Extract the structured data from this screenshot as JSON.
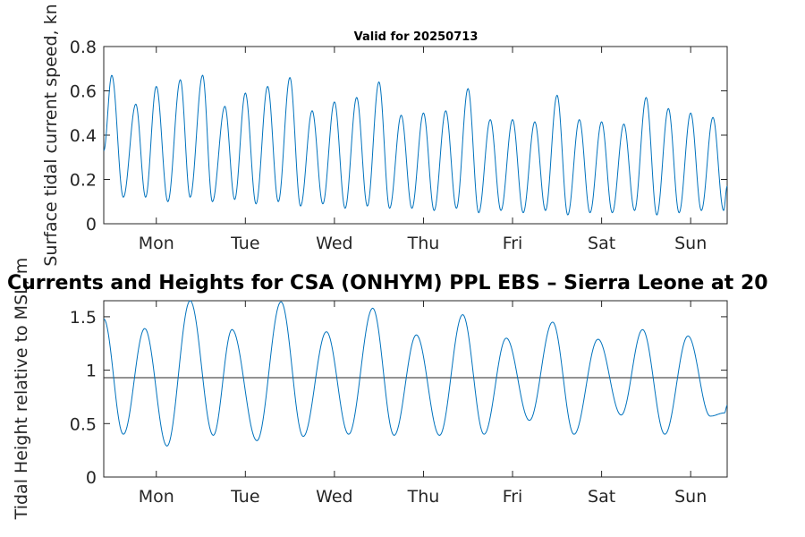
{
  "chart_data": [
    {
      "type": "line",
      "title": "Valid for 20250713",
      "ylabel": "Surface tidal current speed, kn",
      "ylim": [
        0,
        0.8
      ],
      "yticks": [
        "0",
        "0.2",
        "0.4",
        "0.6",
        "0.8"
      ],
      "xlim": [
        0,
        7
      ],
      "xticks": [
        {
          "x": 0.59,
          "label": "Mon"
        },
        {
          "x": 1.59,
          "label": "Tue"
        },
        {
          "x": 2.59,
          "label": "Wed"
        },
        {
          "x": 3.59,
          "label": "Thu"
        },
        {
          "x": 4.59,
          "label": "Fri"
        },
        {
          "x": 5.59,
          "label": "Sat"
        },
        {
          "x": 6.59,
          "label": "Sun"
        }
      ],
      "grid": false,
      "series": [
        {
          "color": "#0072BD",
          "x": [
            0,
            0.09,
            0.22,
            0.36,
            0.47,
            0.59,
            0.72,
            0.86,
            0.97,
            1.11,
            1.22,
            1.36,
            1.47,
            1.59,
            1.71,
            1.84,
            1.96,
            2.09,
            2.21,
            2.34,
            2.46,
            2.59,
            2.71,
            2.84,
            2.96,
            3.09,
            3.21,
            3.34,
            3.46,
            3.59,
            3.71,
            3.84,
            3.96,
            4.09,
            4.21,
            4.34,
            4.46,
            4.59,
            4.71,
            4.84,
            4.96,
            5.09,
            5.21,
            5.34,
            5.46,
            5.59,
            5.71,
            5.84,
            5.96,
            6.09,
            6.21,
            6.34,
            6.46,
            6.59,
            6.71,
            6.84,
            6.96,
            7.0
          ],
          "y": [
            0.33,
            0.67,
            0.12,
            0.54,
            0.12,
            0.62,
            0.1,
            0.65,
            0.12,
            0.67,
            0.1,
            0.53,
            0.11,
            0.59,
            0.09,
            0.62,
            0.1,
            0.66,
            0.08,
            0.51,
            0.09,
            0.55,
            0.07,
            0.57,
            0.08,
            0.64,
            0.07,
            0.49,
            0.07,
            0.5,
            0.06,
            0.51,
            0.07,
            0.61,
            0.05,
            0.47,
            0.06,
            0.47,
            0.05,
            0.46,
            0.06,
            0.58,
            0.04,
            0.47,
            0.05,
            0.46,
            0.05,
            0.45,
            0.06,
            0.57,
            0.04,
            0.52,
            0.05,
            0.5,
            0.06,
            0.48,
            0.06,
            0.17
          ]
        }
      ]
    },
    {
      "type": "line",
      "title": "Currents and Heights for CSA (ONHYM) PPL EBS  – Sierra Leone at 20",
      "ylabel": "Tidal Height relative to MSL, m",
      "ylim": [
        0,
        1.65
      ],
      "yticks": [
        "0",
        "0.5",
        "1",
        "1.5"
      ],
      "xlim": [
        0,
        7
      ],
      "xticks": [
        {
          "x": 0.59,
          "label": "Mon"
        },
        {
          "x": 1.59,
          "label": "Tue"
        },
        {
          "x": 2.59,
          "label": "Wed"
        },
        {
          "x": 3.59,
          "label": "Thu"
        },
        {
          "x": 4.59,
          "label": "Fri"
        },
        {
          "x": 5.59,
          "label": "Sat"
        },
        {
          "x": 6.59,
          "label": "Sun"
        }
      ],
      "grid": false,
      "reference_line_y": 0.93,
      "series": [
        {
          "color": "#0072BD",
          "x": [
            0,
            0.22,
            0.46,
            0.71,
            0.97,
            1.23,
            1.44,
            1.72,
            1.99,
            2.24,
            2.5,
            2.75,
            3.02,
            3.26,
            3.51,
            3.77,
            4.03,
            4.27,
            4.52,
            4.78,
            5.04,
            5.28,
            5.55,
            5.81,
            6.05,
            6.3,
            6.56,
            6.81,
            6.97,
            7.0
          ],
          "y": [
            1.48,
            0.4,
            1.39,
            0.29,
            1.65,
            0.39,
            1.38,
            0.34,
            1.64,
            0.38,
            1.36,
            0.4,
            1.58,
            0.39,
            1.33,
            0.39,
            1.52,
            0.4,
            1.3,
            0.53,
            1.45,
            0.4,
            1.29,
            0.58,
            1.38,
            0.4,
            1.32,
            0.57,
            0.6,
            0.67
          ]
        }
      ]
    }
  ]
}
